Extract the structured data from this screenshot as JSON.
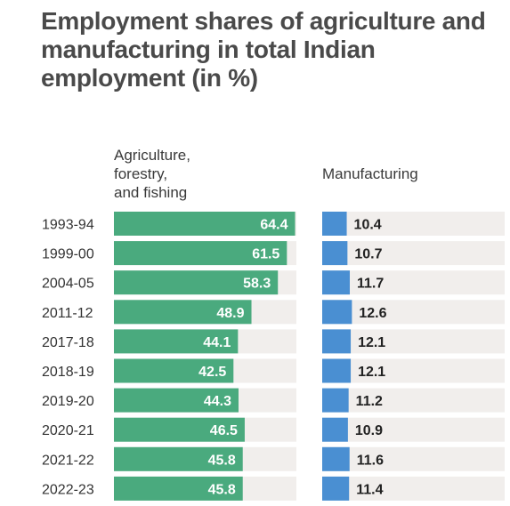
{
  "title": "Employment shares of agriculture and manufacturing in total Indian employment (in %)",
  "columns": {
    "agriculture": "Agriculture,\nforestry,\nand fishing",
    "manufacturing": "Manufacturing"
  },
  "colors": {
    "agriculture": "#4aaa7e",
    "manufacturing": "#4a8fd2",
    "track": "#f1eeec",
    "title": "#4a4a4a",
    "text": "#333333"
  },
  "chart_data": {
    "type": "bar",
    "orientation": "horizontal",
    "categories": [
      "1993-94",
      "1999-00",
      "2004-05",
      "2011-12",
      "2017-18",
      "2018-19",
      "2019-20",
      "2020-21",
      "2021-22",
      "2022-23"
    ],
    "series": [
      {
        "name": "Agriculture, forestry, and fishing",
        "values": [
          64.4,
          61.5,
          58.3,
          48.9,
          44.1,
          42.5,
          44.3,
          46.5,
          45.8,
          45.8
        ]
      },
      {
        "name": "Manufacturing",
        "values": [
          10.4,
          10.7,
          11.7,
          12.6,
          12.1,
          12.1,
          11.2,
          10.9,
          11.6,
          11.4
        ]
      }
    ]
  }
}
